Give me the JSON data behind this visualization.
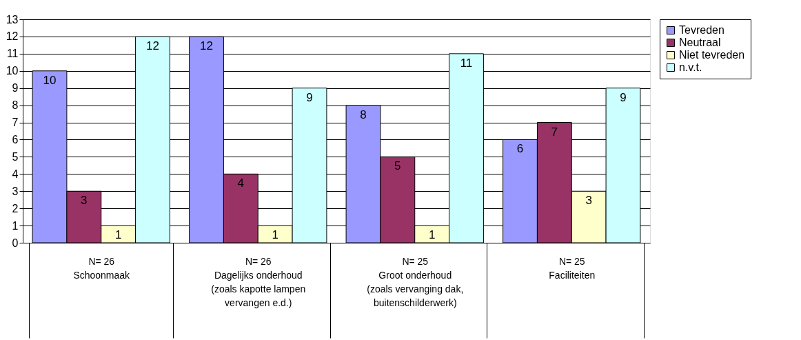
{
  "chart_data": {
    "type": "bar",
    "categories": [
      "N= 26\n\nSchoonmaak",
      "N= 26\n\nDagelijks onderhoud\n(zoals kapotte lampen\nvervangen e.d.)",
      "N= 25\n\nGroot onderhoud\n(zoals vervanging dak,\nbuitenschilderwerk)",
      "N= 25\n\nFaciliteiten"
    ],
    "series": [
      {
        "name": "Tevreden",
        "color": "#9999ff",
        "values": [
          10,
          12,
          8,
          6
        ]
      },
      {
        "name": "Neutraal",
        "color": "#993366",
        "values": [
          3,
          4,
          5,
          7
        ]
      },
      {
        "name": "Niet tevreden",
        "color": "#ffffcc",
        "values": [
          1,
          1,
          1,
          3
        ]
      },
      {
        "name": "n.v.t.",
        "color": "#ccffff",
        "values": [
          12,
          9,
          11,
          9
        ]
      }
    ],
    "ylim": [
      0,
      13
    ],
    "yticks": [
      0,
      1,
      2,
      3,
      4,
      5,
      6,
      7,
      8,
      9,
      10,
      11,
      12,
      13
    ],
    "grid": "y",
    "legend": "right",
    "data_labels": true
  }
}
